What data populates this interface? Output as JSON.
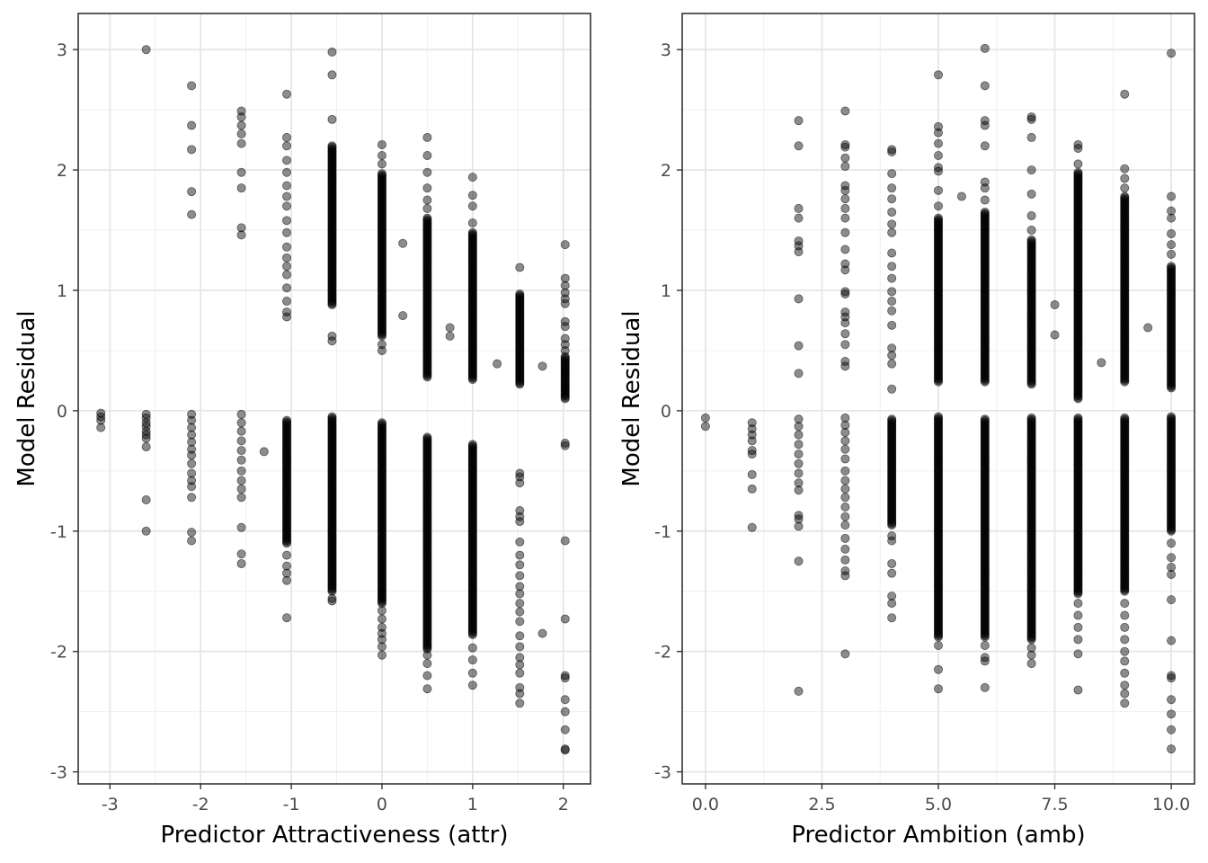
{
  "chart_data": [
    {
      "type": "scatter",
      "title": "",
      "xlabel": "Predictor Attractiveness (attr)",
      "ylabel": "Model Residual",
      "xlim": [
        -3.35,
        2.3
      ],
      "ylim": [
        -3.1,
        3.3
      ],
      "x_ticks": [
        -3,
        -2,
        -1,
        0,
        1,
        2
      ],
      "x_tick_labels": [
        "-3",
        "-2",
        "-1",
        "0",
        "1",
        "2"
      ],
      "y_ticks": [
        -3,
        -2,
        -1,
        0,
        1,
        2,
        3
      ],
      "y_tick_labels": [
        "-3",
        "-2",
        "-1",
        "0",
        "1",
        "2",
        "3"
      ],
      "grid": true,
      "point_color": "#000000",
      "point_alpha": 0.45,
      "columns": [
        {
          "x": -3.1,
          "pos": [],
          "neg": [
            -0.02,
            -0.05,
            -0.08,
            -0.14
          ]
        },
        {
          "x": -2.6,
          "pos": [
            3.0
          ],
          "neg": [
            -0.03,
            -0.06,
            -0.1,
            -0.13,
            -0.17,
            -0.2,
            -0.23,
            -0.3,
            -0.74,
            -1.0
          ]
        },
        {
          "x": -2.1,
          "pos": [
            1.63,
            1.82,
            2.17,
            2.37,
            2.7
          ],
          "neg": [
            -0.03,
            -0.08,
            -0.14,
            -0.2,
            -0.26,
            -0.32,
            -0.37,
            -0.44,
            -0.52,
            -0.58,
            -0.63,
            -0.72,
            -1.01,
            -1.08
          ]
        },
        {
          "x": -1.55,
          "pos": [
            1.46,
            1.52,
            1.85,
            1.98,
            2.22,
            2.3,
            2.37,
            2.44,
            2.49
          ],
          "neg": [
            -0.03,
            -0.1,
            -0.17,
            -0.25,
            -0.33,
            -0.41,
            -0.5,
            -0.58,
            -0.65,
            -0.72,
            -0.97,
            -1.19,
            -1.27
          ]
        },
        {
          "x": -1.3,
          "pos": [],
          "neg": [
            -0.34
          ]
        },
        {
          "x": -1.05,
          "pos": [
            0.78,
            0.82,
            0.91,
            1.02,
            1.13,
            1.2,
            1.27,
            1.36,
            1.48,
            1.58,
            1.7,
            1.78,
            1.87,
            1.98,
            2.08,
            2.2,
            2.27,
            2.63
          ],
          "neg": [
            -1.2,
            -1.29,
            -1.35,
            -1.41,
            -1.72
          ],
          "neg_band": [
            -0.08,
            -1.1
          ]
        },
        {
          "x": -0.55,
          "pos": [
            0.58,
            0.62,
            2.42,
            2.79,
            2.98
          ],
          "pos_band": [
            0.88,
            2.2
          ],
          "neg": [
            -1.56,
            -1.58
          ],
          "neg_band": [
            -0.05,
            -1.5
          ]
        },
        {
          "x": 0,
          "pos": [
            0.5,
            0.55,
            2.05,
            2.12,
            2.21
          ],
          "pos_band": [
            0.62,
            1.97
          ],
          "neg": [
            -1.66,
            -1.73,
            -1.8,
            -1.85,
            -1.9,
            -1.96,
            -2.03
          ],
          "neg_band": [
            -0.1,
            -1.6
          ]
        },
        {
          "x": 0.23,
          "pos": [
            1.39,
            0.79
          ],
          "neg": []
        },
        {
          "x": 0.5,
          "pos": [
            1.68,
            1.75,
            1.85,
            1.98,
            2.12,
            2.27
          ],
          "pos_band": [
            0.28,
            1.6
          ],
          "neg": [
            -2.03,
            -2.1,
            -2.2,
            -2.31
          ],
          "neg_band": [
            -0.22,
            -1.98
          ]
        },
        {
          "x": 0.75,
          "pos": [
            0.69,
            0.62
          ],
          "neg": []
        },
        {
          "x": 1.0,
          "pos": [
            1.56,
            1.7,
            1.79,
            1.94
          ],
          "pos_band": [
            0.26,
            1.48
          ],
          "neg": [
            -1.97,
            -2.07,
            -2.18,
            -2.28
          ],
          "neg_band": [
            -0.28,
            -1.86
          ]
        },
        {
          "x": 1.27,
          "pos": [
            0.39
          ],
          "neg": []
        },
        {
          "x": 1.52,
          "pos": [
            1.19
          ],
          "pos_band": [
            0.22,
            0.97
          ],
          "neg": [
            -0.52,
            -0.55,
            -0.6,
            -0.83,
            -0.88,
            -0.92,
            -1.09,
            -1.2,
            -1.28,
            -1.37,
            -1.46,
            -1.52,
            -1.6,
            -1.67,
            -1.75,
            -1.87,
            -1.96,
            -2.05,
            -2.11,
            -2.18,
            -2.3,
            -2.35,
            -2.43
          ],
          "neg_band": []
        },
        {
          "x": 1.77,
          "pos": [
            0.37
          ],
          "neg": [
            -1.85
          ]
        },
        {
          "x": 2.02,
          "pos": [
            0.89,
            0.93,
            0.98,
            1.04,
            1.1,
            1.38,
            0.74,
            0.7,
            0.6,
            0.55,
            0.5
          ],
          "pos_band": [
            0.1,
            0.45
          ],
          "neg": [
            -0.27,
            -0.29,
            -1.08,
            -1.73,
            -2.2,
            -2.22,
            -2.4,
            -2.5,
            -2.65,
            -2.81,
            -2.82
          ]
        }
      ]
    },
    {
      "type": "scatter",
      "title": "",
      "xlabel": "Predictor Ambition (amb)",
      "ylabel": "Model Residual",
      "xlim": [
        -0.5,
        10.5
      ],
      "ylim": [
        -3.1,
        3.3
      ],
      "x_ticks": [
        0,
        2.5,
        5,
        7.5,
        10
      ],
      "x_tick_labels": [
        "0.0",
        "2.5",
        "5.0",
        "7.5",
        "10.0"
      ],
      "y_ticks": [
        -3,
        -2,
        -1,
        0,
        1,
        2,
        3
      ],
      "y_tick_labels": [
        "-3",
        "-2",
        "-1",
        "0",
        "1",
        "2",
        "3"
      ],
      "grid": true,
      "point_color": "#000000",
      "point_alpha": 0.45,
      "columns": [
        {
          "x": 0,
          "pos": [],
          "neg": [
            -0.06,
            -0.13
          ]
        },
        {
          "x": 1,
          "pos": [],
          "neg": [
            -0.1,
            -0.15,
            -0.2,
            -0.25,
            -0.33,
            -0.36,
            -0.53,
            -0.65,
            -0.97
          ]
        },
        {
          "x": 2,
          "pos": [
            0.31,
            0.54,
            0.93,
            1.32,
            1.37,
            1.41,
            1.6,
            1.68,
            2.2,
            2.41
          ],
          "neg": [
            -0.07,
            -0.13,
            -0.2,
            -0.28,
            -0.36,
            -0.44,
            -0.52,
            -0.6,
            -0.66,
            -0.87,
            -0.9,
            -0.96,
            -1.25,
            -2.33
          ]
        },
        {
          "x": 3,
          "pos": [
            0.37,
            0.41,
            0.55,
            0.64,
            0.73,
            0.78,
            0.82,
            0.97,
            0.99,
            1.17,
            1.22,
            1.34,
            1.48,
            1.6,
            1.68,
            1.76,
            1.83,
            1.87,
            2.03,
            2.1,
            2.19,
            2.21,
            2.49
          ],
          "neg": [
            -0.06,
            -0.12,
            -0.18,
            -0.25,
            -0.32,
            -0.4,
            -0.5,
            -0.58,
            -0.65,
            -0.72,
            -0.8,
            -0.88,
            -0.95,
            -1.06,
            -1.15,
            -1.24,
            -1.33,
            -1.37,
            -2.02
          ]
        },
        {
          "x": 4,
          "pos": [
            0.18,
            0.39,
            0.46,
            0.52,
            0.71,
            0.83,
            0.91,
            0.99,
            1.1,
            1.2,
            1.31,
            1.48,
            1.55,
            1.65,
            1.76,
            1.85,
            1.97,
            2.15,
            2.17
          ],
          "neg": [
            -1.04,
            -1.08,
            -1.27,
            -1.35,
            -1.54,
            -1.6,
            -1.72
          ],
          "neg_band": [
            -0.07,
            -0.95
          ]
        },
        {
          "x": 5,
          "pos": [
            1.7,
            1.83,
            1.99,
            2.02,
            2.12,
            2.22,
            2.31,
            2.36,
            2.79
          ],
          "pos_band": [
            0.24,
            1.6
          ],
          "neg": [
            -1.95,
            -2.15,
            -2.31
          ],
          "neg_band": [
            -0.05,
            -1.88
          ]
        },
        {
          "x": 5.5,
          "pos": [
            1.78
          ],
          "neg": []
        },
        {
          "x": 6,
          "pos": [
            1.75,
            1.85,
            1.9,
            2.2,
            2.37,
            2.41,
            2.7,
            3.01
          ],
          "pos_band": [
            0.24,
            1.65
          ],
          "neg": [
            -1.95,
            -2.05,
            -2.08,
            -2.3
          ],
          "neg_band": [
            -0.07,
            -1.88
          ]
        },
        {
          "x": 7,
          "pos": [
            1.5,
            1.62,
            1.8,
            2.0,
            2.27,
            2.42,
            2.44
          ],
          "pos_band": [
            0.22,
            1.42
          ],
          "neg": [
            -1.97,
            -2.03,
            -2.1
          ],
          "neg_band": [
            -0.06,
            -1.9
          ]
        },
        {
          "x": 7.5,
          "pos": [
            0.88,
            0.63
          ],
          "neg": []
        },
        {
          "x": 8,
          "pos": [
            2.05,
            2.18,
            2.21
          ],
          "pos_band": [
            0.1,
            1.98
          ],
          "neg": [
            -1.6,
            -1.7,
            -1.8,
            -1.9,
            -2.02,
            -2.32
          ],
          "neg_band": [
            -0.06,
            -1.52
          ]
        },
        {
          "x": 8.5,
          "pos": [
            0.4
          ],
          "neg": []
        },
        {
          "x": 9,
          "pos": [
            1.85,
            1.93,
            2.01,
            2.63
          ],
          "pos_band": [
            0.24,
            1.78
          ],
          "neg": [
            -1.6,
            -1.7,
            -1.8,
            -1.9,
            -2.0,
            -2.08,
            -2.18,
            -2.28,
            -2.35,
            -2.43
          ],
          "neg_band": [
            -0.06,
            -1.5
          ]
        },
        {
          "x": 9.5,
          "pos": [
            0.69
          ],
          "neg": []
        },
        {
          "x": 10,
          "pos": [
            1.3,
            1.38,
            1.47,
            1.6,
            1.66,
            1.78,
            2.97
          ],
          "pos_band": [
            0.19,
            1.2
          ],
          "neg": [
            -1.1,
            -1.22,
            -1.3,
            -1.36,
            -1.57,
            -1.91,
            -2.2,
            -2.22,
            -2.4,
            -2.52,
            -2.65,
            -2.81
          ],
          "neg_band": [
            -0.05,
            -1.0
          ]
        }
      ]
    }
  ]
}
